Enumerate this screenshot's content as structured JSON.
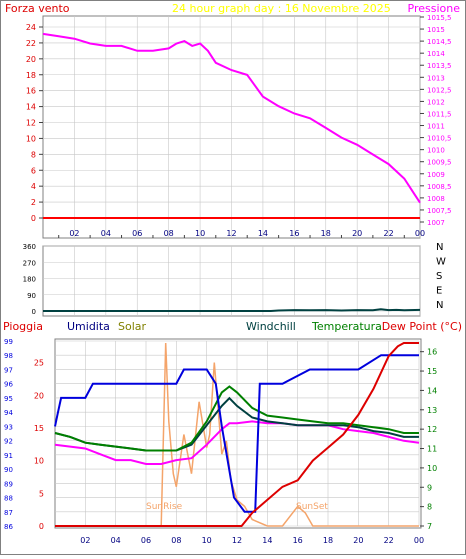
{
  "header": {
    "left_label": "Forza vento",
    "title": "24 hour graph day : 16 Novembre 2025",
    "right_label": "Pressione"
  },
  "middle": {
    "direction_labels": [
      "N",
      "W",
      "S",
      "E",
      "N"
    ]
  },
  "bottom_labels": {
    "rain": "Pioggia",
    "humidity": "Umidita",
    "solar": "Solar",
    "windchill": "Windchill",
    "temperature": "Temperatura",
    "dewpoint": "Dew Point (°C)",
    "sunrise": "SunRise",
    "sunset": "SunSet"
  },
  "colors": {
    "background": "#ffffff",
    "frame": "#808080",
    "title": "#ffff00",
    "wind": "#ff0000",
    "pressure": "#ff00ff",
    "direction": "#004040",
    "rain": "#dd0000",
    "humidity": "#0000dd",
    "solar": "#f4a46a",
    "windchill": "#004040",
    "temperature": "#008000",
    "dewpoint": "#ff00ff",
    "heading_humidity": "#000080",
    "heading_solar": "#808000"
  },
  "chart_data": [
    {
      "type": "line",
      "x_tick_labels": [
        "02",
        "04",
        "06",
        "08",
        "10",
        "12",
        "14",
        "16",
        "18",
        "20",
        "22",
        "00"
      ],
      "x_range_hours": [
        0,
        24
      ],
      "y_left": {
        "label": "Forza vento",
        "ticks": [
          "0",
          "2",
          "4",
          "6",
          "8",
          "10",
          "12",
          "14",
          "16",
          "18",
          "20",
          "22",
          "24"
        ],
        "range": [
          0,
          24
        ]
      },
      "y_right": {
        "label": "Pressione",
        "ticks": [
          "1007",
          "1007,5",
          "1008",
          "1008,5",
          "1009",
          "1009,5",
          "1010",
          "1010,5",
          "1011",
          "1011,5",
          "1012",
          "1012,5",
          "1013",
          "1013,5",
          "1014",
          "1014,5",
          "1015",
          "1015,5"
        ],
        "range": [
          1007,
          1015.5
        ]
      },
      "grid": true,
      "series": [
        {
          "name": "Forza vento",
          "axis": "left",
          "x": [
            0,
            24
          ],
          "values": [
            0,
            0
          ]
        },
        {
          "name": "Pressione",
          "axis": "right",
          "x": [
            0,
            1,
            2,
            3,
            4,
            5,
            6,
            7,
            8,
            8.5,
            9,
            9.5,
            10,
            10.5,
            11,
            12,
            13,
            14,
            15,
            16,
            17,
            18,
            19,
            20,
            21,
            22,
            23,
            23.6,
            24
          ],
          "values": [
            1014.8,
            1014.7,
            1014.6,
            1014.4,
            1014.3,
            1014.3,
            1014.1,
            1014.1,
            1014.2,
            1014.4,
            1014.5,
            1014.3,
            1014.4,
            1014.1,
            1013.6,
            1013.3,
            1013.1,
            1012.2,
            1011.8,
            1011.5,
            1011.3,
            1010.9,
            1010.5,
            1010.2,
            1009.8,
            1009.4,
            1008.8,
            1008.2,
            1007.8
          ]
        }
      ]
    },
    {
      "type": "line",
      "x_range_hours": [
        0,
        24
      ],
      "y_left": {
        "ticks": [
          "0",
          "90",
          "180",
          "270",
          "360"
        ],
        "range": [
          0,
          360
        ]
      },
      "y_right_labels": [
        "N",
        "W",
        "S",
        "E",
        "N"
      ],
      "series": [
        {
          "name": "Direzione vento",
          "x": [
            0,
            14.5,
            15,
            16,
            17,
            18,
            19,
            20,
            21,
            21.5,
            22,
            22.5,
            23,
            24
          ],
          "values": [
            0,
            0,
            3,
            5,
            4,
            5,
            3,
            5,
            4,
            10,
            5,
            6,
            4,
            6
          ]
        }
      ]
    },
    {
      "type": "line",
      "x_tick_labels": [
        "02",
        "04",
        "06",
        "08",
        "10",
        "12",
        "14",
        "16",
        "18",
        "20",
        "22",
        "00"
      ],
      "x_range_hours": [
        0,
        24
      ],
      "y_left_humidity": {
        "ticks": [
          "86",
          "87",
          "88",
          "89",
          "90",
          "91",
          "92",
          "93",
          "94",
          "95",
          "96",
          "97",
          "98",
          "99"
        ],
        "range": [
          86,
          99
        ]
      },
      "y_left_rain": {
        "ticks": [
          "0",
          "5",
          "10",
          "15",
          "20",
          "25"
        ],
        "range": [
          0,
          28
        ]
      },
      "y_right_temperature": {
        "ticks": [
          "7",
          "8",
          "9",
          "10",
          "11",
          "12",
          "13",
          "14",
          "15",
          "16"
        ],
        "range": [
          7,
          16.5
        ]
      },
      "annotations": [
        "SunRise",
        "SunSet"
      ],
      "series": [
        {
          "name": "Pioggia",
          "axis": "rain",
          "x": [
            0,
            12.3,
            13,
            14,
            15,
            16,
            17,
            18,
            19,
            20,
            21,
            22,
            22.6,
            23,
            24
          ],
          "values": [
            0,
            0,
            2,
            4,
            6,
            7,
            10,
            12,
            14,
            17,
            21,
            26,
            27.5,
            28,
            28
          ]
        },
        {
          "name": "Umidita",
          "axis": "humidity",
          "x": [
            0,
            0.2,
            0.4,
            2,
            2.5,
            4,
            6,
            8,
            8.5,
            10,
            10.6,
            11,
            11.8,
            12.5,
            13.2,
            13.5,
            15,
            16.8,
            18,
            20,
            21.5,
            22,
            22.5,
            24
          ],
          "values": [
            93,
            94,
            95,
            95,
            96,
            96,
            96,
            96,
            97,
            97,
            96,
            93,
            88,
            87,
            87,
            96,
            96,
            97,
            97,
            97,
            98,
            98,
            98,
            98
          ]
        },
        {
          "name": "Solar",
          "axis": "rain",
          "x": [
            0,
            7,
            7.3,
            7.5,
            7.8,
            8,
            8.5,
            9,
            9.5,
            10,
            10.2,
            10.5,
            11,
            11.3,
            11.6,
            12,
            12.5,
            13,
            14,
            15,
            16,
            16.5,
            17,
            24
          ],
          "values": [
            0,
            0,
            28,
            16,
            8,
            6,
            14,
            8,
            19,
            12,
            14,
            25,
            11,
            13,
            7,
            4,
            3,
            1,
            0,
            0,
            3,
            2,
            0,
            0
          ]
        },
        {
          "name": "Windchill",
          "axis": "temperature",
          "x": [
            0,
            1,
            2,
            3,
            4,
            5,
            6,
            7,
            8,
            9,
            10,
            11,
            11.5,
            12,
            13,
            14,
            15,
            16,
            17,
            18,
            19,
            20,
            21,
            22,
            23,
            24
          ],
          "values": [
            11.8,
            11.6,
            11.3,
            11.2,
            11.1,
            11.0,
            10.9,
            10.9,
            10.9,
            11.2,
            12.2,
            13.2,
            13.6,
            13.2,
            12.6,
            12.4,
            12.3,
            12.2,
            12.2,
            12.2,
            12.2,
            12.1,
            11.9,
            11.8,
            11.6,
            11.6
          ]
        },
        {
          "name": "Temperatura",
          "axis": "temperature",
          "x": [
            0,
            1,
            2,
            3,
            4,
            5,
            6,
            7,
            8,
            9,
            10,
            11,
            11.5,
            12,
            13,
            14,
            15,
            16,
            17,
            18,
            19,
            20,
            21,
            22,
            23,
            24
          ],
          "values": [
            11.8,
            11.6,
            11.3,
            11.2,
            11.1,
            11.0,
            10.9,
            10.9,
            10.9,
            11.3,
            12.4,
            13.9,
            14.2,
            13.9,
            13.1,
            12.7,
            12.6,
            12.5,
            12.4,
            12.3,
            12.3,
            12.2,
            12.1,
            12.0,
            11.8,
            11.8
          ]
        },
        {
          "name": "Dew Point",
          "axis": "temperature",
          "x": [
            0,
            1,
            2,
            3,
            4,
            5,
            6,
            7,
            8,
            9,
            10,
            11,
            11.5,
            12,
            13,
            14,
            15,
            16,
            17,
            18,
            19,
            20,
            21,
            22,
            23,
            24
          ],
          "values": [
            11.2,
            11.1,
            11.0,
            10.7,
            10.4,
            10.4,
            10.2,
            10.2,
            10.4,
            10.5,
            11.2,
            12.0,
            12.3,
            12.3,
            12.4,
            12.3,
            12.3,
            12.2,
            12.2,
            12.2,
            12.0,
            11.9,
            11.8,
            11.6,
            11.4,
            11.3
          ]
        }
      ]
    }
  ]
}
